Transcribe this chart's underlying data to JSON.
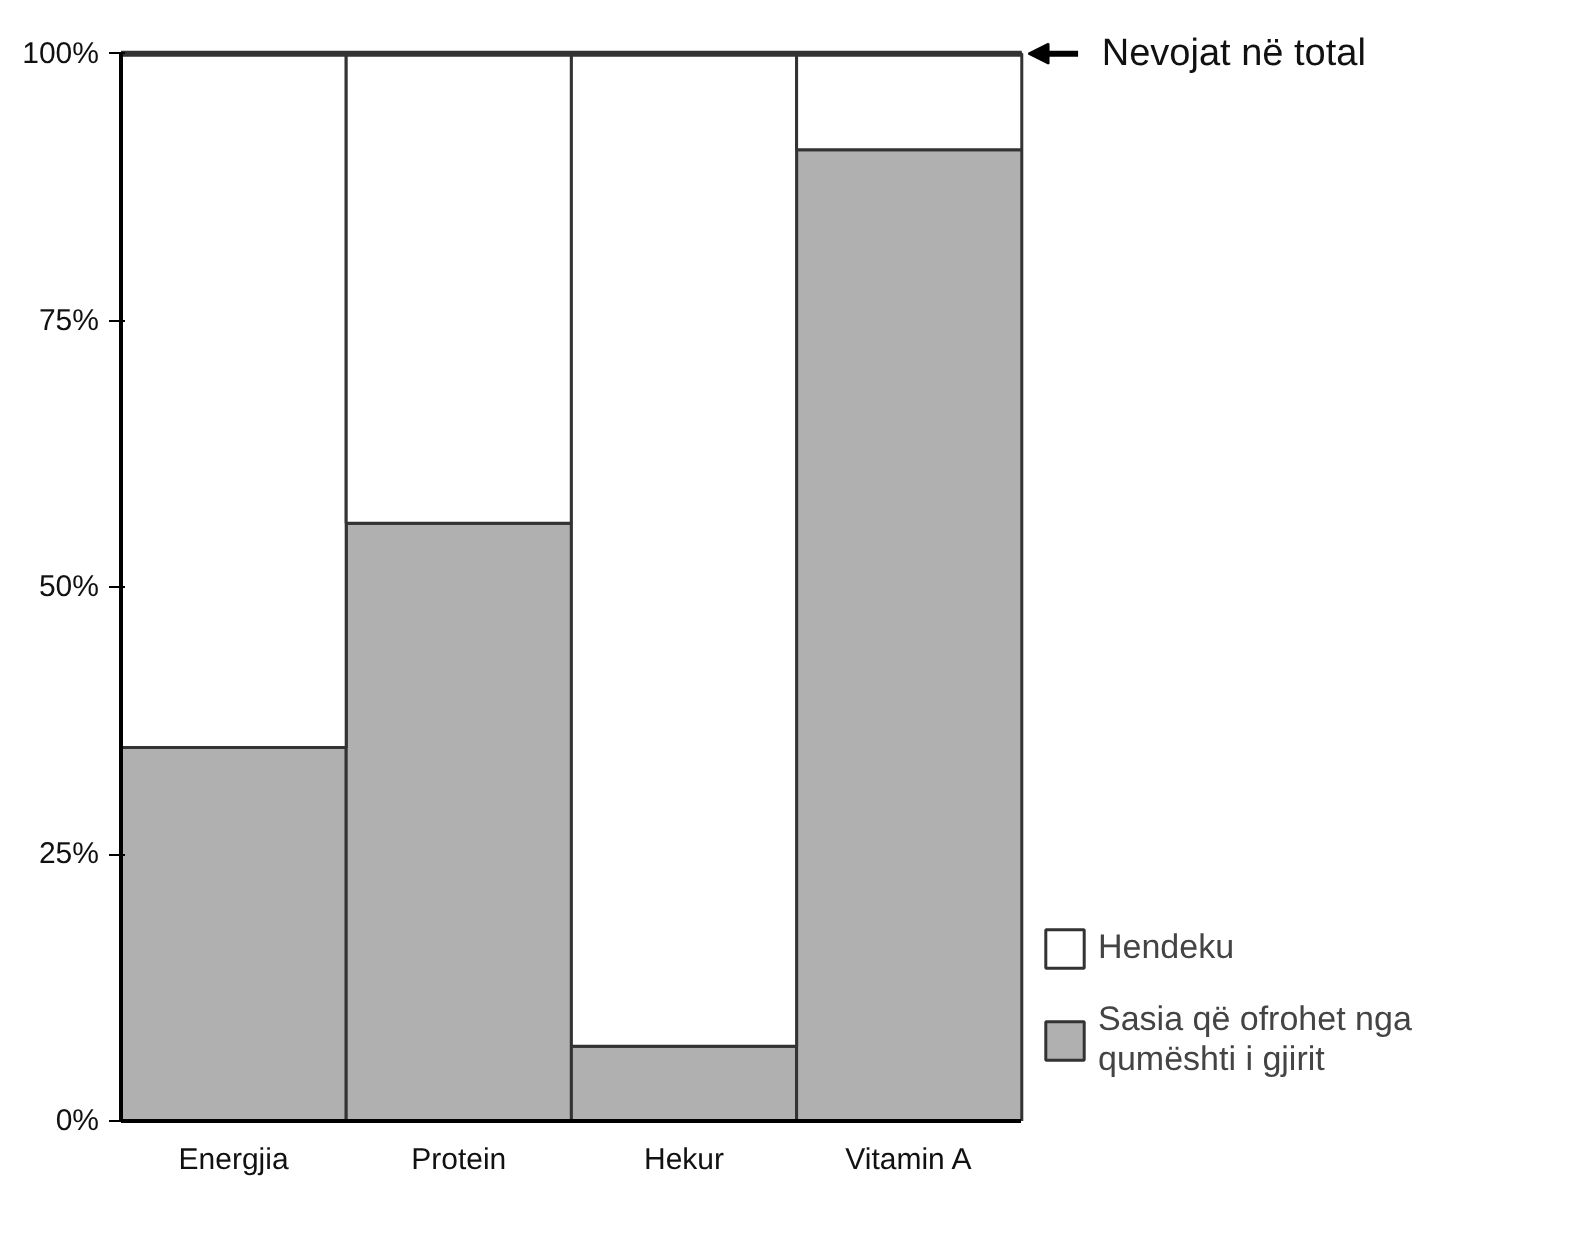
{
  "chart_data": {
    "type": "bar",
    "stacked": true,
    "categories": [
      "Energjia",
      "Protein",
      "Hekur",
      "Vitamin A"
    ],
    "series": [
      {
        "name": "Sasia që ofrohet nga qumështi i gjirit",
        "color": "#b0b0b0",
        "values": [
          35,
          56,
          7,
          91
        ]
      },
      {
        "name": "Hendeku",
        "color": "#ffffff",
        "values": [
          65,
          44,
          93,
          9
        ]
      }
    ],
    "ylim": [
      0,
      100
    ],
    "yticks": [
      {
        "value": 0,
        "label": "0%"
      },
      {
        "value": 25,
        "label": "25%"
      },
      {
        "value": 50,
        "label": "50%"
      },
      {
        "value": 75,
        "label": "75%"
      },
      {
        "value": 100,
        "label": "100%"
      }
    ],
    "ref_lines": [
      {
        "axis": "y",
        "value": 100,
        "label": "Nevojat në total",
        "color": "#333333"
      }
    ],
    "legend": "right"
  }
}
